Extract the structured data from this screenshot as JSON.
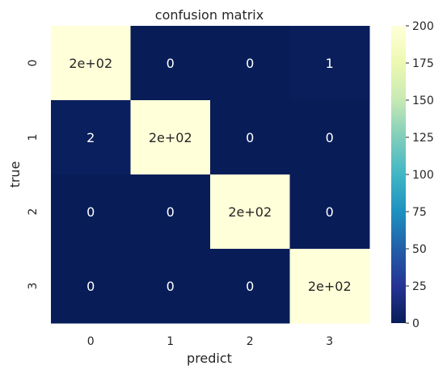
{
  "chart_data": {
    "type": "heatmap",
    "title": "confusion matrix",
    "xlabel": "predict",
    "ylabel": "true",
    "x_categories": [
      "0",
      "1",
      "2",
      "3"
    ],
    "y_categories": [
      "0",
      "1",
      "2",
      "3"
    ],
    "values": [
      [
        200,
        0,
        0,
        1
      ],
      [
        2,
        200,
        0,
        0
      ],
      [
        0,
        0,
        200,
        0
      ],
      [
        0,
        0,
        0,
        200
      ]
    ],
    "annotations": [
      [
        "2e+02",
        "0",
        "0",
        "1"
      ],
      [
        "2",
        "2e+02",
        "0",
        "0"
      ],
      [
        "0",
        "0",
        "2e+02",
        "0"
      ],
      [
        "0",
        "0",
        "0",
        "2e+02"
      ]
    ],
    "colormap": "YlGnBu",
    "colorbar": {
      "min": 0,
      "max": 200,
      "ticks": [
        "0",
        "25",
        "50",
        "75",
        "100",
        "125",
        "150",
        "175",
        "200"
      ]
    },
    "colors": {
      "low": "#081d58",
      "high": "#ffffd9",
      "annot_on_dark": "#ffffff",
      "annot_on_light": "#262626"
    }
  }
}
